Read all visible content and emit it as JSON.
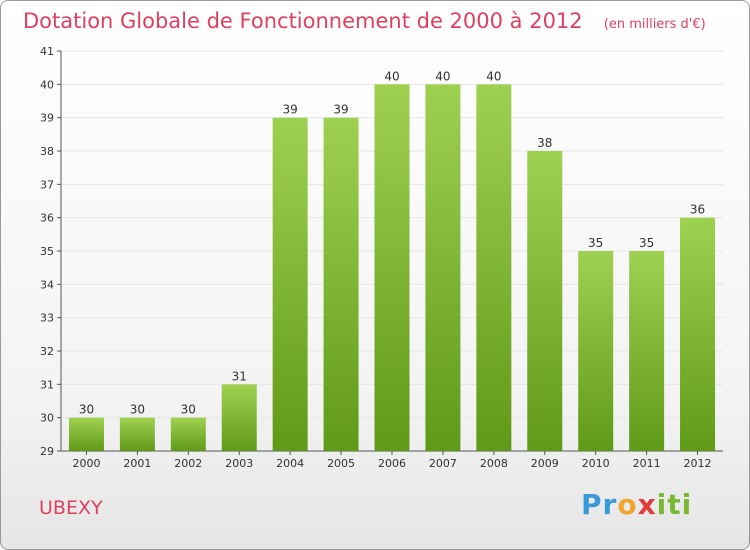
{
  "page": {
    "title": "Dotation Globale de Fonctionnement de 2000 à 2012",
    "subtitle": "(en milliers d'€)",
    "commune": "UBEXY",
    "logo": {
      "parts": [
        "Pr",
        "o",
        "x",
        "iti"
      ],
      "text": "Proxiti"
    }
  },
  "colors": {
    "title": "#e0405f",
    "bar_top": "#9fd150",
    "bar_bottom": "#5f9a16",
    "axis": "#555555",
    "grid": "#e6e6e6"
  },
  "chart_data": {
    "type": "bar",
    "title": "Dotation Globale de Fonctionnement de 2000 à 2012",
    "subtitle": "(en milliers d'€)",
    "categories": [
      "2000",
      "2001",
      "2002",
      "2003",
      "2004",
      "2005",
      "2006",
      "2007",
      "2008",
      "2009",
      "2010",
      "2011",
      "2012"
    ],
    "values": [
      30,
      30,
      30,
      31,
      39,
      39,
      40,
      40,
      40,
      38,
      35,
      35,
      36
    ],
    "ylim": [
      29,
      41
    ],
    "yticks": [
      29,
      30,
      31,
      32,
      33,
      34,
      35,
      36,
      37,
      38,
      39,
      40,
      41
    ],
    "xlabel": "",
    "ylabel": "",
    "grid": true,
    "legend": "none",
    "data_labels": true
  }
}
